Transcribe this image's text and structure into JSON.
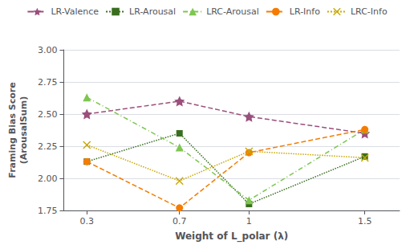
{
  "chart_data": {
    "type": "line",
    "xlabel": "Weight of L_polar (λ)",
    "ylabel": "Framing Bias Score\n(ArousalSum)",
    "x": [
      0.3,
      0.7,
      1.0,
      1.5
    ],
    "series": [
      {
        "name": "LR-Valence",
        "color": "#9b4f7c",
        "marker": "star",
        "line_style": "dashed",
        "values": [
          2.5,
          2.6,
          2.48,
          2.35
        ]
      },
      {
        "name": "LR-Arousal",
        "color": "#3a6e1f",
        "marker": "square",
        "line_style": "dotted",
        "values": [
          2.13,
          2.35,
          1.8,
          2.17
        ]
      },
      {
        "name": "LRC-Arousal",
        "color": "#7ec650",
        "marker": "triangle",
        "line_style": "dashdot",
        "values": [
          2.63,
          2.24,
          1.83,
          2.38
        ]
      },
      {
        "name": "LR-Info",
        "color": "#f57c00",
        "marker": "circle",
        "line_style": "dashed",
        "values": [
          2.13,
          1.77,
          2.2,
          2.38
        ]
      },
      {
        "name": "LRC-Info",
        "color": "#c8a800",
        "marker": "x",
        "line_style": "dotted",
        "values": [
          2.26,
          1.98,
          2.21,
          2.16
        ]
      }
    ],
    "xlim": [
      0.2,
      1.65
    ],
    "xticks": [
      0.3,
      0.7,
      1,
      1.5
    ],
    "ylim": [
      1.75,
      3.0
    ],
    "yticks": [
      1.75,
      {
        "value": 2.0,
        "label": "2.00"
      },
      2.25,
      {
        "value": 2.5,
        "label": "2.50"
      },
      2.75,
      {
        "value": 3.0,
        "label": "3.00"
      }
    ],
    "grid": "y",
    "legend": "top"
  }
}
